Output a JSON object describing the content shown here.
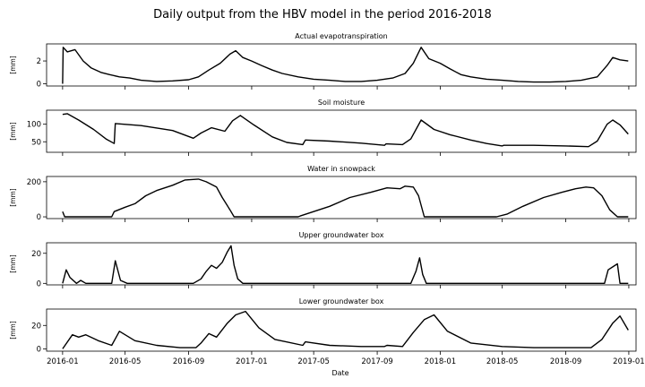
{
  "chart_data": {
    "type": "line",
    "title": "Daily output from the HBV model in the period 2016-2018",
    "xlabel": "Date",
    "xlim": [
      "2015-12-01",
      "2019-01-15"
    ],
    "x_ticks": [
      "2016-01",
      "2016-05",
      "2016-09",
      "2017-01",
      "2017-05",
      "2017-09",
      "2018-01",
      "2018-05",
      "2018-09",
      "2019-01"
    ],
    "panels": [
      {
        "title": "Actual evapotranspiration",
        "ylabel": "[mm]",
        "ylim": [
          -0.2,
          3.5
        ],
        "y_ticks": [
          0,
          2
        ],
        "x": [
          "2016-01-01",
          "2016-01-02",
          "2016-01-10",
          "2016-01-25",
          "2016-02-10",
          "2016-02-25",
          "2016-03-15",
          "2016-04-01",
          "2016-04-20",
          "2016-05-10",
          "2016-06-01",
          "2016-07-01",
          "2016-08-01",
          "2016-09-01",
          "2016-09-20",
          "2016-10-10",
          "2016-11-01",
          "2016-11-20",
          "2016-12-01",
          "2016-12-15",
          "2017-01-01",
          "2017-01-20",
          "2017-02-10",
          "2017-03-01",
          "2017-04-01",
          "2017-05-01",
          "2017-06-01",
          "2017-07-01",
          "2017-08-01",
          "2017-09-01",
          "2017-10-01",
          "2017-10-25",
          "2017-11-10",
          "2017-11-25",
          "2017-12-10",
          "2018-01-01",
          "2018-01-20",
          "2018-02-10",
          "2018-03-01",
          "2018-04-01",
          "2018-05-01",
          "2018-06-01",
          "2018-07-01",
          "2018-08-01",
          "2018-09-01",
          "2018-10-01",
          "2018-11-01",
          "2018-11-20",
          "2018-12-01",
          "2018-12-15",
          "2018-12-31"
        ],
        "values": [
          0.0,
          3.2,
          2.8,
          3.0,
          2.0,
          1.4,
          1.0,
          0.8,
          0.6,
          0.5,
          0.3,
          0.2,
          0.25,
          0.35,
          0.6,
          1.2,
          1.8,
          2.6,
          2.9,
          2.3,
          2.0,
          1.6,
          1.2,
          0.9,
          0.6,
          0.4,
          0.3,
          0.2,
          0.2,
          0.3,
          0.5,
          0.9,
          1.8,
          3.2,
          2.2,
          1.8,
          1.3,
          0.8,
          0.6,
          0.4,
          0.3,
          0.2,
          0.15,
          0.15,
          0.2,
          0.3,
          0.6,
          1.6,
          2.3,
          2.1,
          2.0
        ]
      },
      {
        "title": "Soil moisture",
        "ylabel": "[mm]",
        "ylim": [
          20,
          140
        ],
        "y_ticks": [
          50,
          100
        ],
        "x": [
          "2016-01-01",
          "2016-01-10",
          "2016-02-01",
          "2016-03-01",
          "2016-03-25",
          "2016-04-10",
          "2016-04-12",
          "2016-06-01",
          "2016-08-01",
          "2016-09-10",
          "2016-09-25",
          "2016-10-15",
          "2016-11-10",
          "2016-11-25",
          "2016-12-10",
          "2017-01-05",
          "2017-02-10",
          "2017-03-10",
          "2017-04-10",
          "2017-04-15",
          "2017-06-01",
          "2017-08-01",
          "2017-09-15",
          "2017-09-18",
          "2017-10-20",
          "2017-11-05",
          "2017-11-25",
          "2017-12-20",
          "2018-01-20",
          "2018-03-01",
          "2018-04-01",
          "2018-05-01",
          "2018-05-04",
          "2018-07-01",
          "2018-09-01",
          "2018-10-15",
          "2018-11-01",
          "2018-11-20",
          "2018-12-01",
          "2018-12-15",
          "2018-12-31"
        ],
        "values": [
          128,
          130,
          112,
          85,
          58,
          45,
          102,
          96,
          82,
          60,
          75,
          90,
          80,
          110,
          125,
          98,
          64,
          48,
          42,
          55,
          52,
          46,
          40,
          44,
          42,
          58,
          112,
          85,
          70,
          55,
          45,
          38,
          40,
          40,
          38,
          36,
          52,
          100,
          112,
          98,
          72
        ]
      },
      {
        "title": "Water in snowpack",
        "ylabel": "[mm]",
        "ylim": [
          -10,
          230
        ],
        "y_ticks": [
          0,
          200
        ],
        "x": [
          "2016-01-01",
          "2016-01-05",
          "2016-04-05",
          "2016-04-10",
          "2016-05-01",
          "2016-05-20",
          "2016-06-10",
          "2016-07-01",
          "2016-08-01",
          "2016-08-25",
          "2016-09-20",
          "2016-10-05",
          "2016-10-25",
          "2016-11-05",
          "2016-11-20",
          "2016-11-28",
          "2017-04-01",
          "2017-04-05",
          "2017-06-01",
          "2017-07-10",
          "2017-08-20",
          "2017-09-20",
          "2017-10-15",
          "2017-10-25",
          "2017-11-10",
          "2017-11-20",
          "2017-12-01",
          "2018-04-20",
          "2018-05-10",
          "2018-06-10",
          "2018-07-20",
          "2018-08-25",
          "2018-09-20",
          "2018-10-10",
          "2018-10-25",
          "2018-11-10",
          "2018-11-25",
          "2018-12-10",
          "2018-12-31"
        ],
        "values": [
          30,
          0,
          0,
          30,
          55,
          75,
          120,
          150,
          180,
          210,
          215,
          200,
          170,
          110,
          40,
          0,
          0,
          5,
          60,
          110,
          140,
          165,
          160,
          175,
          170,
          120,
          0,
          0,
          15,
          60,
          110,
          140,
          160,
          170,
          165,
          120,
          40,
          0,
          0
        ]
      },
      {
        "title": "Upper groundwater box",
        "ylabel": "[mm]",
        "ylim": [
          -1,
          27
        ],
        "y_ticks": [
          0,
          20
        ],
        "x": [
          "2016-01-01",
          "2016-01-08",
          "2016-01-15",
          "2016-01-28",
          "2016-02-05",
          "2016-02-15",
          "2016-04-05",
          "2016-04-12",
          "2016-04-22",
          "2016-05-05",
          "2016-09-10",
          "2016-09-25",
          "2016-10-05",
          "2016-10-15",
          "2016-10-25",
          "2016-11-05",
          "2016-11-15",
          "2016-11-22",
          "2016-11-28",
          "2016-12-05",
          "2016-12-15",
          "2017-11-05",
          "2017-11-15",
          "2017-11-22",
          "2017-11-28",
          "2017-12-05",
          "2018-11-15",
          "2018-11-22",
          "2018-12-01",
          "2018-12-10",
          "2018-12-15",
          "2018-12-31"
        ],
        "values": [
          0,
          9,
          4,
          0,
          2,
          0,
          0,
          15,
          2,
          0,
          0,
          3,
          8,
          12,
          10,
          14,
          21,
          25,
          12,
          3,
          0,
          0,
          8,
          17,
          6,
          0,
          0,
          9,
          11,
          13,
          0,
          0
        ]
      },
      {
        "title": "Lower groundwater box",
        "ylabel": "[mm]",
        "ylim": [
          -2,
          34
        ],
        "y_ticks": [
          0,
          20
        ],
        "x": [
          "2016-01-01",
          "2016-01-20",
          "2016-02-01",
          "2016-02-15",
          "2016-03-10",
          "2016-04-05",
          "2016-04-20",
          "2016-05-20",
          "2016-07-01",
          "2016-08-15",
          "2016-09-15",
          "2016-09-25",
          "2016-10-10",
          "2016-10-25",
          "2016-11-15",
          "2016-12-01",
          "2016-12-20",
          "2017-01-15",
          "2017-02-15",
          "2017-04-10",
          "2017-04-15",
          "2017-06-01",
          "2017-08-01",
          "2017-09-15",
          "2017-09-20",
          "2017-10-20",
          "2017-11-10",
          "2017-12-01",
          "2017-12-20",
          "2018-01-15",
          "2018-03-01",
          "2018-05-01",
          "2018-07-01",
          "2018-09-01",
          "2018-10-20",
          "2018-11-10",
          "2018-12-01",
          "2018-12-15",
          "2018-12-31"
        ],
        "values": [
          0,
          12,
          10,
          12,
          7,
          3,
          15,
          7,
          3,
          1,
          1,
          5,
          13,
          10,
          22,
          29,
          32,
          18,
          8,
          3,
          6,
          3,
          2,
          2,
          3,
          2,
          14,
          25,
          29,
          15,
          5,
          2,
          1,
          1,
          1,
          8,
          22,
          28,
          16
        ]
      }
    ]
  }
}
